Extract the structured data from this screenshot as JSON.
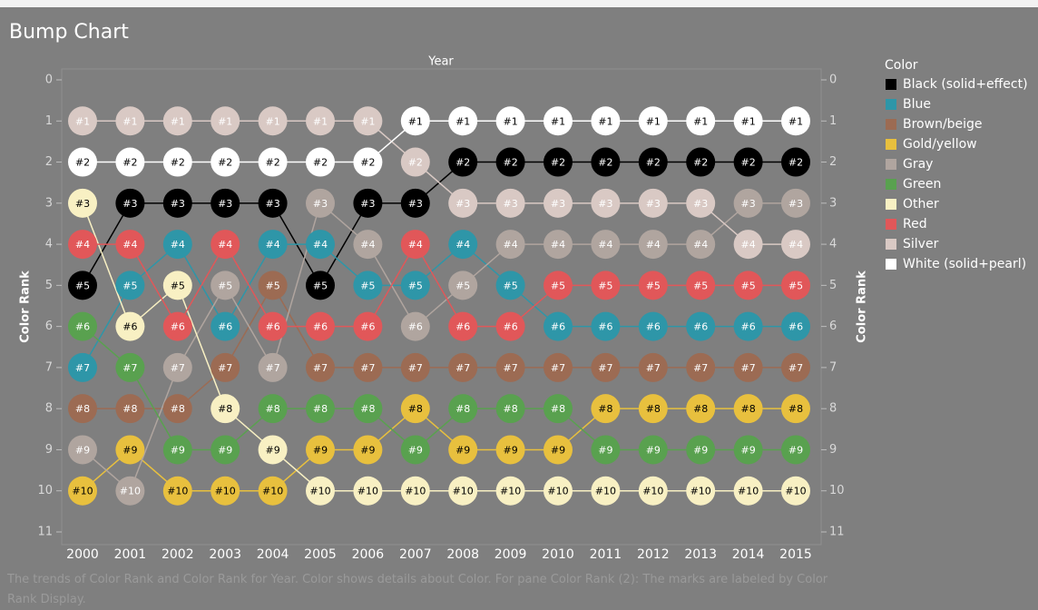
{
  "chart_data": {
    "type": "bump",
    "title": "Bump Chart",
    "x_axis_title": "Year",
    "y_axis_title": "Color Rank",
    "legend_title": "Color",
    "caption": "The trends of Color Rank and Color Rank for Year.  Color shows details about Color.  For pane Color Rank (2):  The marks are labeled by Color Rank Display.",
    "categories": [
      "2000",
      "2001",
      "2002",
      "2003",
      "2004",
      "2005",
      "2006",
      "2007",
      "2008",
      "2009",
      "2010",
      "2011",
      "2012",
      "2013",
      "2014",
      "2015"
    ],
    "ylim": [
      0,
      11
    ],
    "y_reversed": true,
    "yticks": [
      0,
      1,
      2,
      3,
      4,
      5,
      6,
      7,
      8,
      9,
      10,
      11
    ],
    "series": [
      {
        "name": "Black (solid+effect)",
        "color": "#000000",
        "label_color": "#ffffff",
        "values": [
          5,
          3,
          3,
          3,
          3,
          5,
          3,
          3,
          2,
          2,
          2,
          2,
          2,
          2,
          2,
          2
        ],
        "value_labels": [
          "#5",
          "#3",
          "#3",
          "#3",
          "#3",
          "#5",
          "#3",
          "#3",
          "#2",
          "#2",
          "#2",
          "#2",
          "#2",
          "#2",
          "#2",
          "#2"
        ]
      },
      {
        "name": "Blue",
        "color": "#2e96a8",
        "label_color": "#ffffff",
        "values": [
          7,
          5,
          4,
          6,
          4,
          4,
          5,
          5,
          4,
          5,
          6,
          6,
          6,
          6,
          6,
          6
        ],
        "value_labels": [
          "#7",
          "#5",
          "#4",
          "#6",
          "#4",
          "#4",
          "#5",
          "#5",
          "#4",
          "#5",
          "#6",
          "#6",
          "#6",
          "#6",
          "#6",
          "#6"
        ]
      },
      {
        "name": "Brown/beige",
        "color": "#9c6b53",
        "label_color": "#ffffff",
        "values": [
          8,
          8,
          8,
          7,
          5,
          7,
          7,
          7,
          7,
          7,
          7,
          7,
          7,
          7,
          7,
          7
        ],
        "value_labels": [
          "#8",
          "#8",
          "#8",
          "#7",
          "#5",
          "#7",
          "#7",
          "#7",
          "#7",
          "#7",
          "#7",
          "#7",
          "#7",
          "#7",
          "#7",
          "#7"
        ]
      },
      {
        "name": "Gold/yellow",
        "color": "#e8c03e",
        "label_color": "#000000",
        "values": [
          10,
          9,
          10,
          10,
          10,
          9,
          9,
          8,
          9,
          9,
          9,
          8,
          8,
          8,
          8,
          8
        ],
        "value_labels": [
          "#10",
          "#9",
          "#10",
          "#10",
          "#10",
          "#9",
          "#9",
          "#8",
          "#9",
          "#9",
          "#9",
          "#8",
          "#8",
          "#8",
          "#8",
          "#8"
        ]
      },
      {
        "name": "Gray",
        "color": "#b0a59f",
        "label_color": "#ffffff",
        "values": [
          9,
          10,
          7,
          5,
          7,
          3,
          4,
          6,
          5,
          4,
          4,
          4,
          4,
          4,
          3,
          3
        ],
        "value_labels": [
          "#9",
          "#10",
          "#7",
          "#5",
          "#7",
          "#3",
          "#4",
          "#6",
          "#5",
          "#4",
          "#4",
          "#4",
          "#4",
          "#4",
          "#3",
          "#3"
        ]
      },
      {
        "name": "Green",
        "color": "#59a14f",
        "label_color": "#ffffff",
        "values": [
          6,
          7,
          9,
          9,
          8,
          8,
          8,
          9,
          8,
          8,
          8,
          9,
          9,
          9,
          9,
          9
        ],
        "value_labels": [
          "#6",
          "#7",
          "#9",
          "#9",
          "#8",
          "#8",
          "#8",
          "#9",
          "#8",
          "#8",
          "#8",
          "#9",
          "#9",
          "#9",
          "#9",
          "#9"
        ]
      },
      {
        "name": "Other",
        "color": "#f8f0c3",
        "label_color": "#000000",
        "values": [
          3,
          6,
          5,
          8,
          9,
          10,
          10,
          10,
          10,
          10,
          10,
          10,
          10,
          10,
          10,
          10
        ],
        "value_labels": [
          "#3",
          "#6",
          "#5",
          "#8",
          "#9",
          "#10",
          "#10",
          "#10",
          "#10",
          "#10",
          "#10",
          "#10",
          "#10",
          "#10",
          "#10",
          "#10"
        ]
      },
      {
        "name": "Red",
        "color": "#e15759",
        "label_color": "#ffffff",
        "values": [
          4,
          4,
          6,
          4,
          6,
          6,
          6,
          4,
          6,
          6,
          5,
          5,
          5,
          5,
          5,
          5
        ],
        "value_labels": [
          "#4",
          "#4",
          "#6",
          "#4",
          "#6",
          "#6",
          "#6",
          "#4",
          "#6",
          "#6",
          "#5",
          "#5",
          "#5",
          "#5",
          "#5",
          "#5"
        ]
      },
      {
        "name": "Silver",
        "color": "#d9c9c4",
        "label_color": "#ffffff",
        "values": [
          1,
          1,
          1,
          1,
          1,
          1,
          1,
          2,
          3,
          3,
          3,
          3,
          3,
          3,
          4,
          4
        ],
        "value_labels": [
          "#1",
          "#1",
          "#1",
          "#1",
          "#1",
          "#1",
          "#1",
          "#2",
          "#3",
          "#3",
          "#3",
          "#3",
          "#3",
          "#3",
          "#4",
          "#4"
        ]
      },
      {
        "name": "White (solid+pearl)",
        "color": "#ffffff",
        "label_color": "#000000",
        "values": [
          2,
          2,
          2,
          2,
          2,
          2,
          2,
          1,
          1,
          1,
          1,
          1,
          1,
          1,
          1,
          1
        ],
        "value_labels": [
          "#2",
          "#2",
          "#2",
          "#2",
          "#2",
          "#2",
          "#2",
          "#1",
          "#1",
          "#1",
          "#1",
          "#1",
          "#1",
          "#1",
          "#1",
          "#1"
        ]
      }
    ]
  }
}
